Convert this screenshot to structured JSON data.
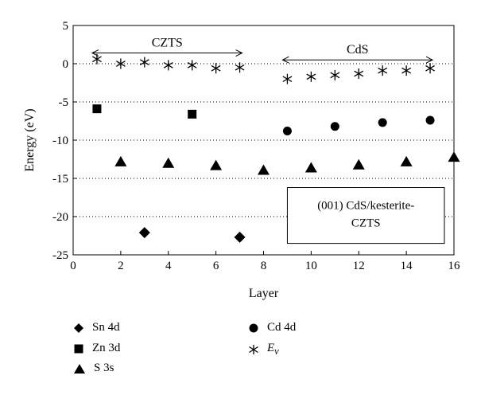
{
  "chart_data": {
    "type": "scatter",
    "xlabel": "Layer",
    "ylabel": "Energy (eV)",
    "xlim": [
      0,
      16
    ],
    "ylim": [
      -25,
      5
    ],
    "xticks": [
      0,
      2,
      4,
      6,
      8,
      10,
      12,
      14,
      16
    ],
    "yticks": [
      5,
      0,
      -5,
      -10,
      -15,
      -20,
      -25
    ],
    "grid": "horizontal dotted",
    "series": [
      {
        "name": "Sn 4d",
        "marker": "diamond",
        "color": "#000000",
        "x": [
          3,
          7
        ],
        "y": [
          -22.1,
          -22.7
        ]
      },
      {
        "name": "Zn 3d",
        "marker": "square",
        "color": "#000000",
        "x": [
          1,
          5
        ],
        "y": [
          -5.9,
          -6.6
        ]
      },
      {
        "name": "S 3s",
        "marker": "triangle",
        "color": "#000000",
        "x": [
          2,
          4,
          6,
          8,
          10,
          12,
          14,
          16
        ],
        "y": [
          -12.8,
          -13.0,
          -13.3,
          -13.9,
          -13.6,
          -13.2,
          -12.8,
          -12.2
        ]
      },
      {
        "name": "Cd 4d",
        "marker": "circle",
        "color": "#000000",
        "x": [
          9,
          11,
          13,
          15
        ],
        "y": [
          -8.8,
          -8.2,
          -7.7,
          -7.4
        ]
      },
      {
        "name": "E",
        "name_sub": "v",
        "marker": "asterisk",
        "color": "#000000",
        "x": [
          1,
          2,
          3,
          4,
          5,
          6,
          7,
          9,
          10,
          11,
          12,
          13,
          14,
          15
        ],
        "y": [
          0.6,
          0.0,
          0.2,
          -0.2,
          -0.2,
          -0.6,
          -0.5,
          -2.0,
          -1.7,
          -1.5,
          -1.3,
          -0.9,
          -0.9,
          -0.6
        ]
      }
    ],
    "annotations": [
      {
        "text": "CZTS",
        "x_from": 0.8,
        "x_to": 7.1,
        "y": 1.4
      },
      {
        "text": "CdS",
        "x_from": 8.8,
        "x_to": 15.1,
        "y": 0.5
      }
    ],
    "info_box": {
      "line1": "(001) CdS/kesterite-",
      "line2": "CZTS"
    }
  }
}
